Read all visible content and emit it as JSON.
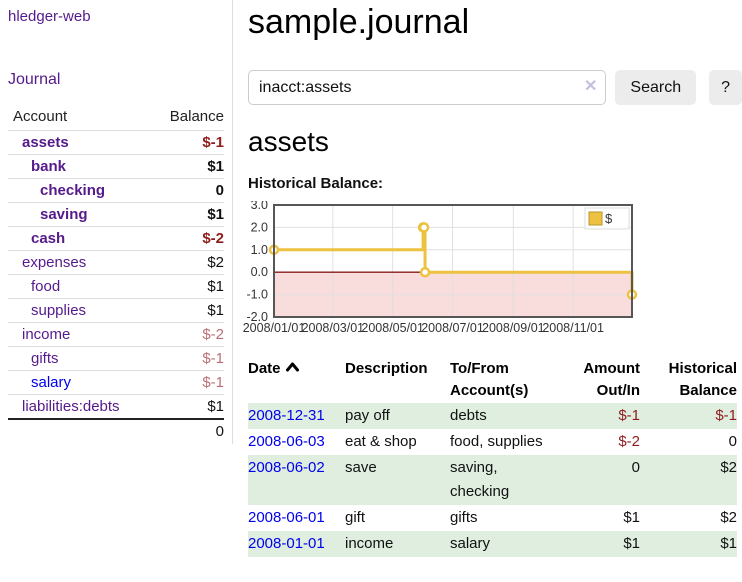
{
  "app": {
    "title": "hledger-web",
    "journal_link": "Journal"
  },
  "sidebar": {
    "header": {
      "account": "Account",
      "balance": "Balance"
    },
    "accounts": [
      {
        "name": "assets",
        "balance": "$-1",
        "level": 1,
        "bold": true
      },
      {
        "name": "bank",
        "balance": "$1",
        "level": 2,
        "bold": true
      },
      {
        "name": "checking",
        "balance": "0",
        "level": 3,
        "bold": true
      },
      {
        "name": "saving",
        "balance": "$1",
        "level": 3,
        "bold": true
      },
      {
        "name": "cash",
        "balance": "$-2",
        "level": 2,
        "bold": true
      },
      {
        "name": "expenses",
        "balance": "$2",
        "level": 1,
        "bold": false
      },
      {
        "name": "food",
        "balance": "$1",
        "level": 2,
        "bold": false
      },
      {
        "name": "supplies",
        "balance": "$1",
        "level": 2,
        "bold": false
      },
      {
        "name": "income",
        "balance": "$-2",
        "level": 1,
        "bold": false
      },
      {
        "name": "gifts",
        "balance": "$-1",
        "level": 2,
        "bold": false
      },
      {
        "name": "salary",
        "balance": "$-1",
        "level": 2,
        "bold": false,
        "link": "blue"
      },
      {
        "name": "liabilities:debts",
        "balance": "$1",
        "level": 1,
        "bold": false
      }
    ],
    "total": "0"
  },
  "main": {
    "title": "sample.journal",
    "search": {
      "value": "inacct:assets",
      "clear_icon": "✕",
      "button": "Search",
      "help": "?"
    },
    "account_heading": "assets",
    "chart_label": "Historical Balance:"
  },
  "chart_data": {
    "type": "line",
    "title": "Historical Balance",
    "series": [
      {
        "name": "$",
        "color": "#edc240",
        "points": [
          [
            "2008-01-01",
            1
          ],
          [
            "2008-06-01",
            2
          ],
          [
            "2008-06-02",
            2
          ],
          [
            "2008-06-03",
            0
          ],
          [
            "2008-12-31",
            -1
          ]
        ]
      }
    ],
    "step": true,
    "xlim": [
      "2008-01-01",
      "2008-12-31"
    ],
    "ylim": [
      -2,
      3
    ],
    "y_ticks": [
      "3.0",
      "2.0",
      "1.0",
      "0.0",
      "-1.0",
      "-2.0"
    ],
    "x_ticks": [
      "2008/01/01",
      "2008/03/01",
      "2008/05/01",
      "2008/07/01",
      "2008/09/01",
      "2008/11/01"
    ],
    "legend": "$",
    "legend_position": "top-right",
    "grid": true,
    "colors": {
      "grid": "#e0e0e0",
      "border": "#565656",
      "zero_line": "#8b1a1a",
      "negative_region": "#f9dcdc",
      "legend_swatch_border": "#b8952f"
    }
  },
  "register": {
    "columns": [
      "Date",
      "Description",
      "To/From Account(s)",
      "Amount Out/In",
      "Historical Balance"
    ],
    "rows": [
      {
        "date": "2008-12-31",
        "description": "pay off",
        "accounts": "debts",
        "amount": "$-1",
        "balance": "$-1"
      },
      {
        "date": "2008-06-03",
        "description": "eat & shop",
        "accounts": "food, supplies",
        "amount": "$-2",
        "balance": "0"
      },
      {
        "date": "2008-06-02",
        "description": "save",
        "accounts": "saving, checking",
        "amount": "0",
        "balance": "$2"
      },
      {
        "date": "2008-06-01",
        "description": "gift",
        "accounts": "gifts",
        "amount": "$1",
        "balance": "$2"
      },
      {
        "date": "2008-01-01",
        "description": "income",
        "accounts": "salary",
        "amount": "$1",
        "balance": "$1"
      }
    ]
  }
}
